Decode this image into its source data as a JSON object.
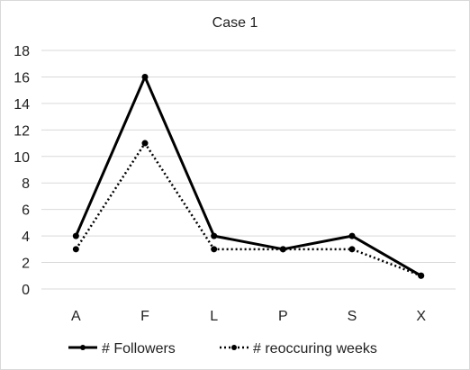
{
  "chart_data": {
    "type": "line",
    "title": "Case 1",
    "categories": [
      "A",
      "F",
      "L",
      "P",
      "S",
      "X"
    ],
    "series": [
      {
        "name": "# Followers",
        "values": [
          4,
          16,
          4,
          3,
          4,
          1
        ],
        "color": "#000000",
        "style": "solid"
      },
      {
        "name": "# reoccuring weeks",
        "values": [
          3,
          11,
          3,
          3,
          3,
          1
        ],
        "color": "#000000",
        "style": "dotted"
      }
    ],
    "ylim": [
      0,
      18
    ],
    "yticks": [
      "0",
      "2",
      "4",
      "6",
      "8",
      "10",
      "12",
      "14",
      "16",
      "18"
    ],
    "xlabel": "",
    "ylabel": "",
    "grid": true,
    "legend_position": "bottom"
  }
}
